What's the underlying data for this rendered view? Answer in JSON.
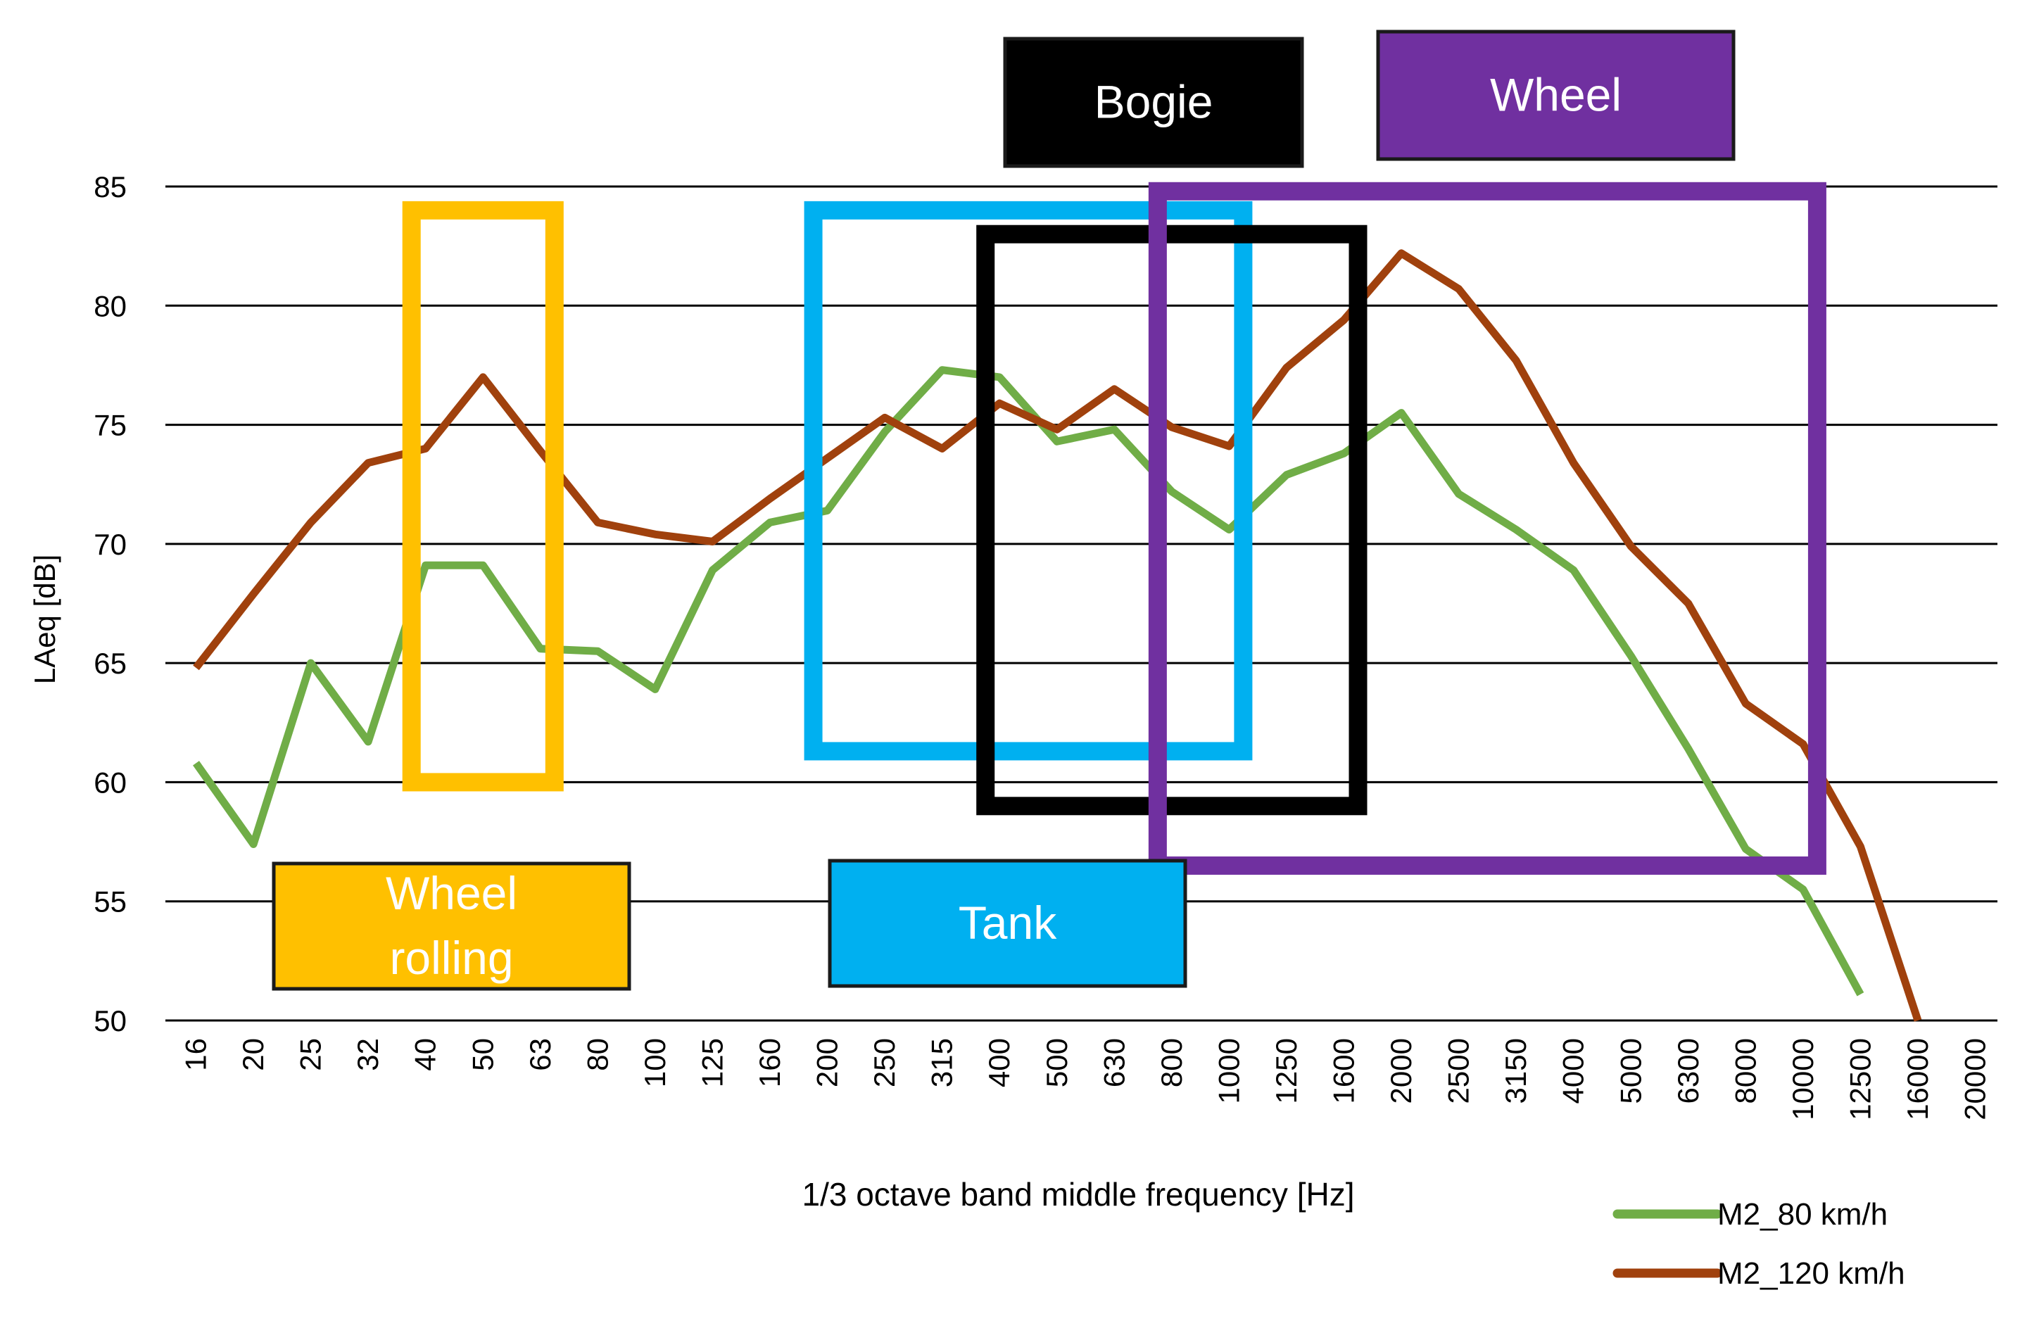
{
  "chart_data": {
    "type": "line",
    "title": "",
    "xlabel": "1/3 octave band middle frequency [Hz]",
    "ylabel": "LAeq [dB]",
    "ylim": [
      50,
      85
    ],
    "yticks": [
      50,
      55,
      60,
      65,
      70,
      75,
      80,
      85
    ],
    "grid": true,
    "legend_position": "bottom-right",
    "categories": [
      "16",
      "20",
      "25",
      "32",
      "40",
      "50",
      "63",
      "80",
      "100",
      "125",
      "160",
      "200",
      "250",
      "315",
      "400",
      "500",
      "630",
      "800",
      "1000",
      "1250",
      "1600",
      "2000",
      "2500",
      "3150",
      "4000",
      "5000",
      "6300",
      "8000",
      "10000",
      "12500",
      "16000",
      "20000"
    ],
    "series": [
      {
        "name": "M2_80 km/h",
        "color": "#70ad47",
        "values": [
          60.8,
          57.4,
          65.0,
          61.7,
          69.1,
          69.1,
          65.6,
          65.5,
          63.9,
          68.9,
          70.9,
          71.4,
          74.7,
          77.3,
          77.0,
          74.3,
          74.8,
          72.2,
          70.6,
          72.9,
          73.8,
          75.5,
          72.1,
          70.6,
          68.9,
          65.3,
          61.4,
          57.2,
          55.5,
          51.1,
          null,
          null
        ]
      },
      {
        "name": "M2_120 km/h",
        "color": "#a0410d",
        "values": [
          64.8,
          67.9,
          70.9,
          73.4,
          74.0,
          77.0,
          73.9,
          70.9,
          70.4,
          70.1,
          71.9,
          73.6,
          75.3,
          74.0,
          75.9,
          74.8,
          76.5,
          74.9,
          74.1,
          77.4,
          79.4,
          82.2,
          80.7,
          77.7,
          73.4,
          69.9,
          67.5,
          63.3,
          61.6,
          57.3,
          50.0,
          null
        ]
      }
    ],
    "annotations": [
      {
        "label": "Wheel rolling",
        "lines": [
          "Wheel",
          "rolling"
        ],
        "color": "#ffc000",
        "text_color": "#ffffff",
        "freq_range": [
          "40",
          "63"
        ],
        "db_range": [
          60.0,
          84.0
        ]
      },
      {
        "label": "Tank",
        "lines": [
          "Tank"
        ],
        "color": "#00b0f0",
        "text_color": "#ffffff",
        "freq_range": [
          "200",
          "1000"
        ],
        "db_range": [
          61.3,
          84.0
        ]
      },
      {
        "label": "Bogie",
        "lines": [
          "Bogie"
        ],
        "color": "#000000",
        "text_color": "#ffffff",
        "freq_range": [
          "400",
          "1600"
        ],
        "db_range": [
          59.0,
          83.0
        ]
      },
      {
        "label": "Wheel",
        "lines": [
          "Wheel"
        ],
        "color": "#7030a0",
        "text_color": "#ffffff",
        "freq_range": [
          "800",
          "10000"
        ],
        "db_range": [
          56.5,
          84.8
        ]
      }
    ]
  }
}
